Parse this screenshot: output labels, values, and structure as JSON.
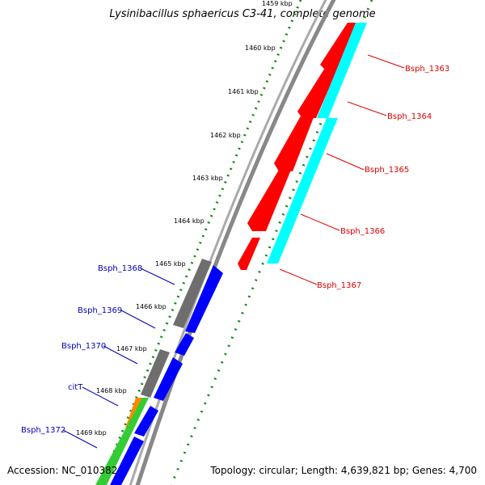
{
  "title": "Lysinibacillus sphaericus C3-41, complete genome",
  "footer": {
    "accession": "Accession: NC_010382",
    "topology": "Topology: circular; Length: 4,639,821 bp; Genes: 4,700"
  },
  "scale_ticks": [
    "1459 kbp",
    "1460 kbp",
    "1461 kbp",
    "1462 kbp",
    "1463 kbp",
    "1464 kbp",
    "1465 kbp",
    "1466 kbp",
    "1467 kbp",
    "1468 kbp",
    "1469 kbp"
  ],
  "right_labels": [
    "Bsph_1363",
    "Bsph_1364",
    "Bsph_1365",
    "Bsph_1366",
    "Bsph_1367"
  ],
  "left_labels": [
    "Bsph_1368",
    "Bsph_1369",
    "Bsph_1370",
    "citT",
    "Bsph_1372"
  ],
  "colors": {
    "forward_cds": "#ff0000",
    "reverse_cds": "#0000ff",
    "cyan_track": "#00ffff",
    "gray_track": "#6e6e6e",
    "green_track": "#33cc33",
    "orange_track": "#ff8800",
    "dotted_track": "#118811",
    "backbone": "#888888",
    "right_label": "#dd0000",
    "left_label": "#0000bb"
  }
}
